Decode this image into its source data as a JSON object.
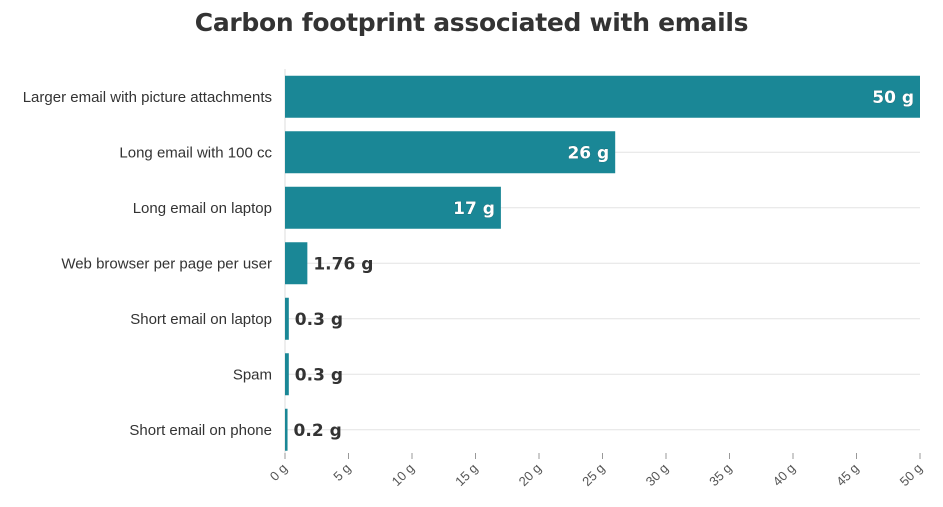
{
  "chart_data": {
    "type": "bar",
    "orientation": "horizontal",
    "title": "Carbon footprint associated with emails",
    "xlabel": "",
    "ylabel": "",
    "categories": [
      "Larger email with picture attachments",
      "Long email with 100 cc",
      "Long email on laptop",
      "Web browser per page per user",
      "Short email on laptop",
      "Spam",
      "Short email on phone"
    ],
    "values": [
      50,
      26,
      17,
      1.76,
      0.3,
      0.3,
      0.2
    ],
    "value_labels": [
      "50 g",
      "26 g",
      "17 g",
      "1.76 g",
      "0.3 g",
      "0.3 g",
      "0.2 g"
    ],
    "xlim": [
      0,
      50
    ],
    "x_ticks": [
      0,
      5,
      10,
      15,
      20,
      25,
      30,
      35,
      40,
      45,
      50
    ],
    "x_tick_labels": [
      "0 g",
      "5 g",
      "10 g",
      "15 g",
      "20 g",
      "25 g",
      "30 g",
      "35 g",
      "40 g",
      "45 g",
      "50 g"
    ],
    "grid": true,
    "legend": "none",
    "bar_color": "#1a8796"
  }
}
